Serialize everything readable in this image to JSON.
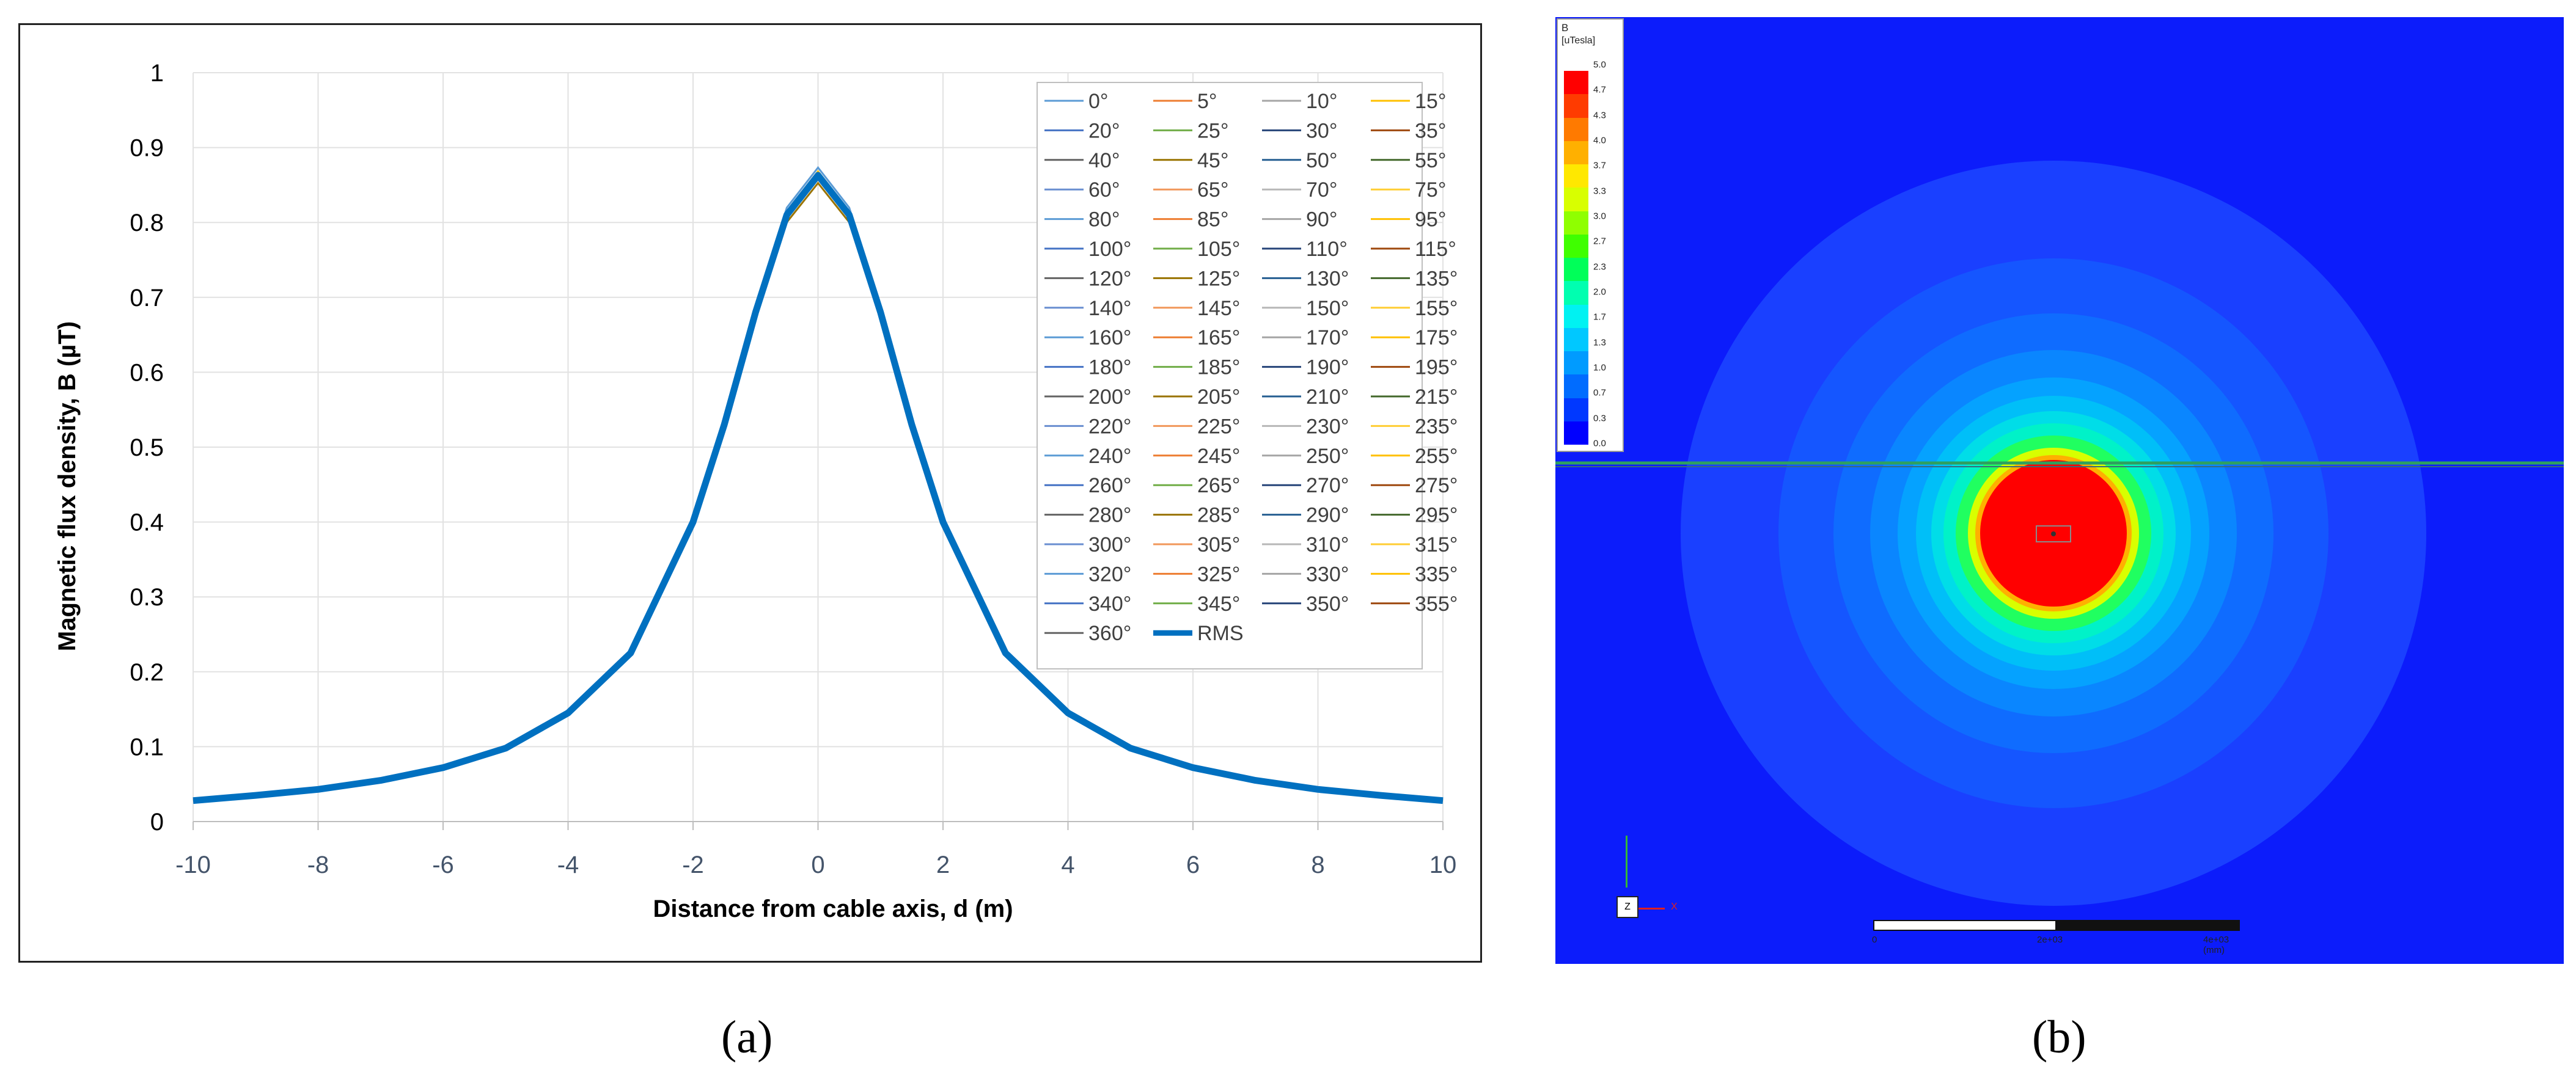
{
  "panel_a": {
    "caption": "(a)",
    "chart_data": {
      "type": "line",
      "xlabel": "Distance from cable axis, d (m)",
      "ylabel": "Magnetic flux density, B (µT)",
      "xlim": [
        -10,
        10
      ],
      "ylim": [
        0,
        1
      ],
      "x_ticks": [
        "-10",
        "-8",
        "-6",
        "-4",
        "-2",
        "0",
        "2",
        "4",
        "6",
        "8",
        "10"
      ],
      "y_ticks": [
        "0",
        "0.1",
        "0.2",
        "0.3",
        "0.4",
        "0.5",
        "0.6",
        "0.7",
        "0.8",
        "0.9",
        "1"
      ],
      "grid": true,
      "legend_position": "top-right",
      "legend": [
        "0°",
        "5°",
        "10°",
        "15°",
        "20°",
        "25°",
        "30°",
        "35°",
        "40°",
        "45°",
        "50°",
        "55°",
        "60°",
        "65°",
        "70°",
        "75°",
        "80°",
        "85°",
        "90°",
        "95°",
        "100°",
        "105°",
        "110°",
        "115°",
        "120°",
        "125°",
        "130°",
        "135°",
        "140°",
        "145°",
        "150°",
        "155°",
        "160°",
        "165°",
        "170°",
        "175°",
        "180°",
        "185°",
        "190°",
        "195°",
        "200°",
        "205°",
        "210°",
        "215°",
        "220°",
        "225°",
        "230°",
        "235°",
        "240°",
        "245°",
        "250°",
        "255°",
        "260°",
        "265°",
        "270°",
        "275°",
        "280°",
        "285°",
        "290°",
        "295°",
        "300°",
        "305°",
        "310°",
        "315°",
        "320°",
        "325°",
        "330°",
        "335°",
        "340°",
        "345°",
        "350°",
        "355°",
        "360°",
        "RMS"
      ],
      "legend_colors": [
        "#5b9bd5",
        "#ed7d31",
        "#a5a5a5",
        "#ffc000",
        "#4472c4",
        "#70ad47",
        "#264478",
        "#9e480e",
        "#636363",
        "#997300",
        "#255e91",
        "#43682b",
        "#698ed0",
        "#f1975a",
        "#b7b7b7",
        "#ffcd33"
      ],
      "rms_color": "#0070c0",
      "x": [
        -10,
        -9,
        -8,
        -7,
        -6,
        -5,
        -4,
        -3,
        -2,
        -1.5,
        -1,
        -0.5,
        0,
        0.5,
        1,
        1.5,
        2,
        3,
        4,
        5,
        6,
        7,
        8,
        9,
        10
      ],
      "series": [
        {
          "name": "RMS",
          "values": [
            0.028,
            0.035,
            0.043,
            0.055,
            0.072,
            0.098,
            0.145,
            0.225,
            0.4,
            0.53,
            0.68,
            0.81,
            0.863,
            0.81,
            0.68,
            0.53,
            0.4,
            0.225,
            0.145,
            0.098,
            0.072,
            0.055,
            0.043,
            0.035,
            0.028
          ]
        }
      ]
    }
  },
  "panel_b": {
    "caption": "(b)",
    "colorbar_title": "B",
    "colorbar_unit": "[uTesla]",
    "colorbar_ticks": [
      "5.0",
      "4.7",
      "4.3",
      "4.0",
      "3.7",
      "3.3",
      "3.0",
      "2.7",
      "2.3",
      "2.0",
      "1.7",
      "1.3",
      "1.0",
      "0.7",
      "0.3",
      "0.0"
    ],
    "colorbar_colors": [
      "#ff0000",
      "#ff3b00",
      "#ff7a00",
      "#ffb000",
      "#ffe800",
      "#d8ff00",
      "#8fff00",
      "#3fff00",
      "#00ff59",
      "#00ffb0",
      "#00f2f2",
      "#00c8ff",
      "#009bff",
      "#006cff",
      "#0038ff",
      "#0000ff"
    ],
    "axis_z": "Z",
    "axis_x": "X",
    "scale_labels": [
      "0",
      "2e+03",
      "4e+03 (mm)"
    ],
    "background_color": "#0c1cfb"
  }
}
